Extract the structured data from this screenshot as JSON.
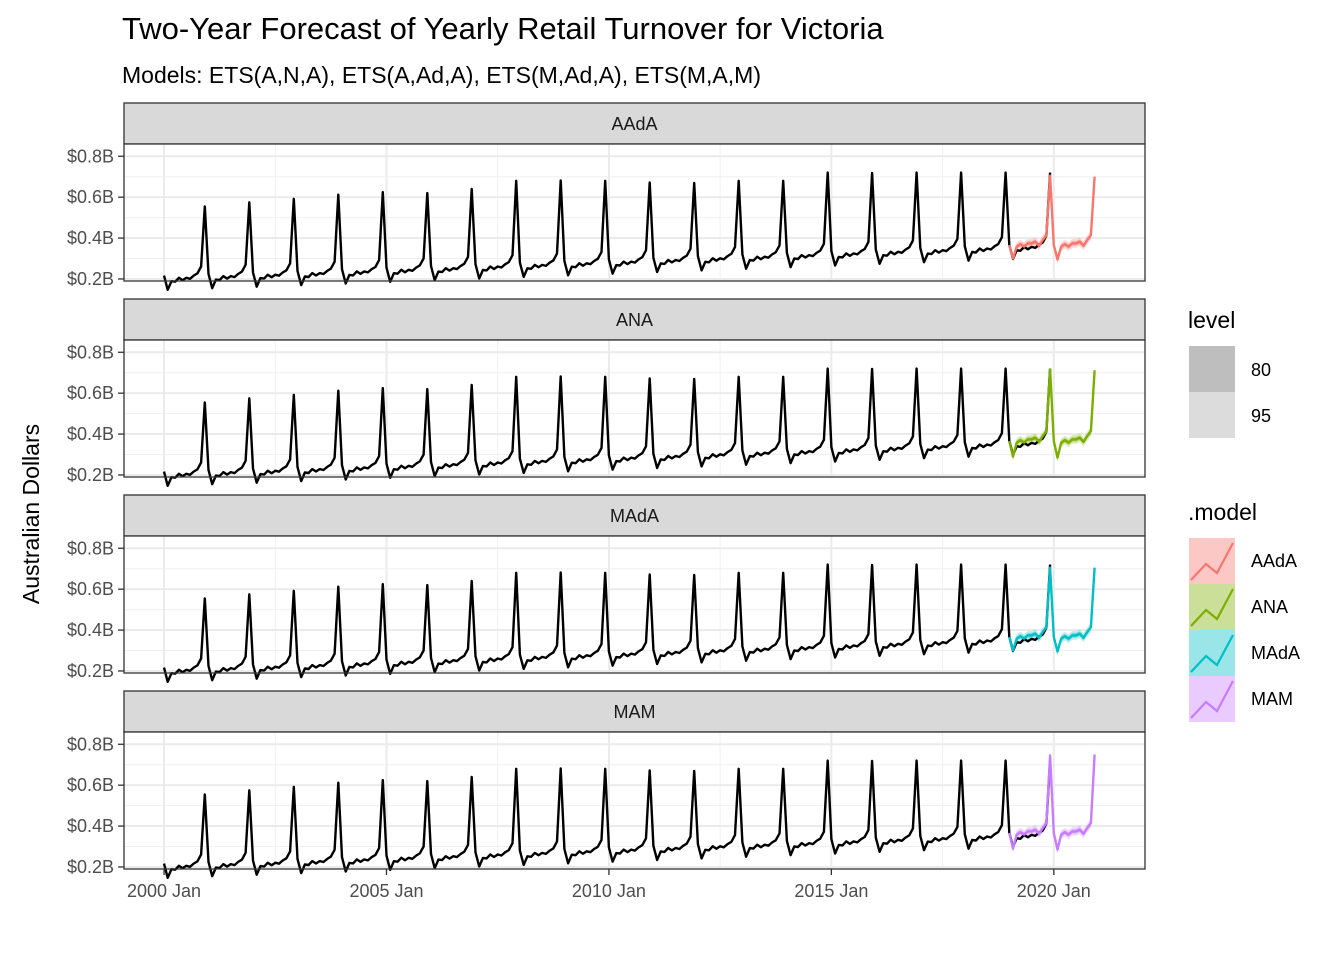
{
  "chart_data": {
    "type": "line",
    "title": "Two-Year Forecast of Yearly Retail Turnover for Victoria",
    "subtitle": "Models: ETS(A,N,A), ETS(A,Ad,A), ETS(M,Ad,A), ETS(M,A,M)",
    "xlabel": "",
    "ylabel": "Australian Dollars",
    "x_ticks": [
      "2000 Jan",
      "2005 Jan",
      "2010 Jan",
      "2015 Jan",
      "2020 Jan"
    ],
    "y_ticks": [
      "$0.2B",
      "$0.4B",
      "$0.6B",
      "$0.8B"
    ],
    "y_tick_values": [
      0.2,
      0.4,
      0.6,
      0.8
    ],
    "xlim": [
      1999.1,
      2022.05
    ],
    "ylim": [
      0.19,
      0.86
    ],
    "history": {
      "start": 2000.0,
      "base": [
        0.195,
        0.203,
        0.21,
        0.218,
        0.226,
        0.234,
        0.242,
        0.25,
        0.258,
        0.266,
        0.274,
        0.282,
        0.29,
        0.298,
        0.306,
        0.314,
        0.322,
        0.33,
        0.338,
        0.346
      ],
      "peak": [
        0.555,
        0.575,
        0.592,
        0.612,
        0.625,
        0.62,
        0.64,
        0.68,
        0.682,
        0.68,
        0.672,
        0.67,
        0.68,
        0.68,
        0.72,
        0.718,
        0.72,
        0.72,
        0.72,
        0.72
      ]
    },
    "facets": [
      {
        "name": "AAdA",
        "color": "#F8766D",
        "peaks": [
          0.705,
          0.7
        ],
        "lows": [
          0.3,
          0.295
        ]
      },
      {
        "name": "ANA",
        "color": "#7CAE00",
        "peaks": [
          0.715,
          0.712
        ],
        "lows": [
          0.29,
          0.285
        ]
      },
      {
        "name": "MAdA",
        "color": "#00BFC4",
        "peaks": [
          0.705,
          0.705
        ],
        "lows": [
          0.3,
          0.295
        ]
      },
      {
        "name": "MAM",
        "color": "#C77CFF",
        "peaks": [
          0.745,
          0.75
        ],
        "lows": [
          0.29,
          0.285
        ]
      }
    ],
    "legend": {
      "level": {
        "title": "level",
        "items": [
          "80",
          "95"
        ]
      },
      "model": {
        "title": ".model",
        "items": [
          "AAdA",
          "ANA",
          "MAdA",
          "MAM"
        ]
      }
    }
  }
}
